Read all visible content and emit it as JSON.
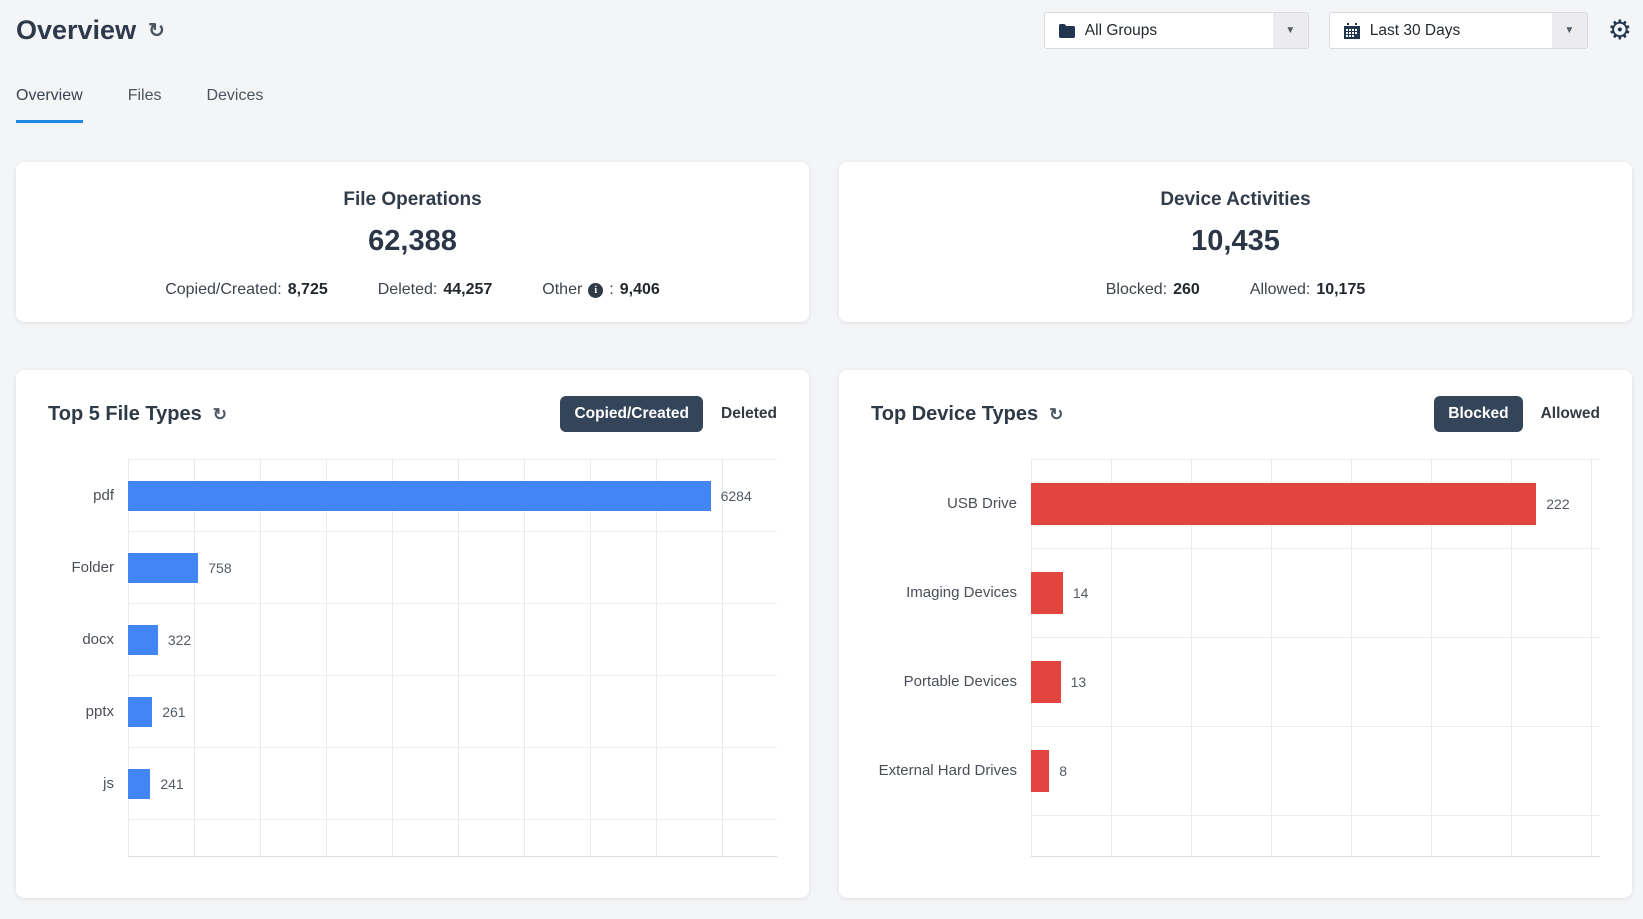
{
  "page_title": "Overview",
  "icons": {
    "refresh": "↻",
    "settings": "⚙",
    "caret": "▼",
    "info": "i"
  },
  "filters": {
    "group_dropdown": {
      "value": "All Groups",
      "icon": "folder-icon"
    },
    "date_dropdown": {
      "value": "Last 30 Days",
      "icon": "calendar-icon"
    }
  },
  "tabs": [
    {
      "label": "Overview",
      "active": true
    },
    {
      "label": "Files",
      "active": false
    },
    {
      "label": "Devices",
      "active": false
    }
  ],
  "summary_cards": [
    {
      "title": "File Operations",
      "total": "62,388",
      "stats": [
        {
          "label": "Copied/Created:",
          "value": "8,725",
          "info": false,
          "sep": ""
        },
        {
          "label": "Deleted:",
          "value": "44,257",
          "info": false,
          "sep": ""
        },
        {
          "label": "Other",
          "value": "9,406",
          "info": true,
          "sep": ":"
        }
      ]
    },
    {
      "title": "Device Activities",
      "total": "10,435",
      "stats": [
        {
          "label": "Blocked:",
          "value": "260",
          "info": false,
          "sep": ""
        },
        {
          "label": "Allowed:",
          "value": "10,175",
          "info": false,
          "sep": ""
        }
      ]
    }
  ],
  "chart_data": [
    {
      "type": "bar",
      "orientation": "horizontal",
      "title": "Top 5 File Types",
      "toggles": [
        {
          "label": "Copied/Created",
          "active": true
        },
        {
          "label": "Deleted",
          "active": false
        }
      ],
      "categories": [
        "pdf",
        "Folder",
        "docx",
        "pptx",
        "js"
      ],
      "values": [
        6284,
        758,
        322,
        261,
        241
      ],
      "rows": [
        {
          "label": "pdf",
          "value": 6284
        },
        {
          "label": "Folder",
          "value": 758
        },
        {
          "label": "docx",
          "value": 322
        },
        {
          "label": "pptx",
          "value": 261
        },
        {
          "label": "js",
          "value": 241
        }
      ],
      "bar_color": "#4285f4",
      "xlim": [
        0,
        7000
      ],
      "grid": true,
      "value_labels": true,
      "legend": "none"
    },
    {
      "type": "bar",
      "orientation": "horizontal",
      "title": "Top Device Types",
      "toggles": [
        {
          "label": "Blocked",
          "active": true
        },
        {
          "label": "Allowed",
          "active": false
        }
      ],
      "categories": [
        "USB Drive",
        "Imaging Devices",
        "Portable Devices",
        "External Hard Drives"
      ],
      "values": [
        222,
        14,
        13,
        8
      ],
      "rows": [
        {
          "label": "USB Drive",
          "value": 222
        },
        {
          "label": "Imaging Devices",
          "value": 14
        },
        {
          "label": "Portable Devices",
          "value": 13
        },
        {
          "label": "External Hard Drives",
          "value": 8
        }
      ],
      "bar_color": "#e2453d",
      "xlim": [
        0,
        250
      ],
      "grid": true,
      "value_labels": true,
      "legend": "none"
    }
  ]
}
